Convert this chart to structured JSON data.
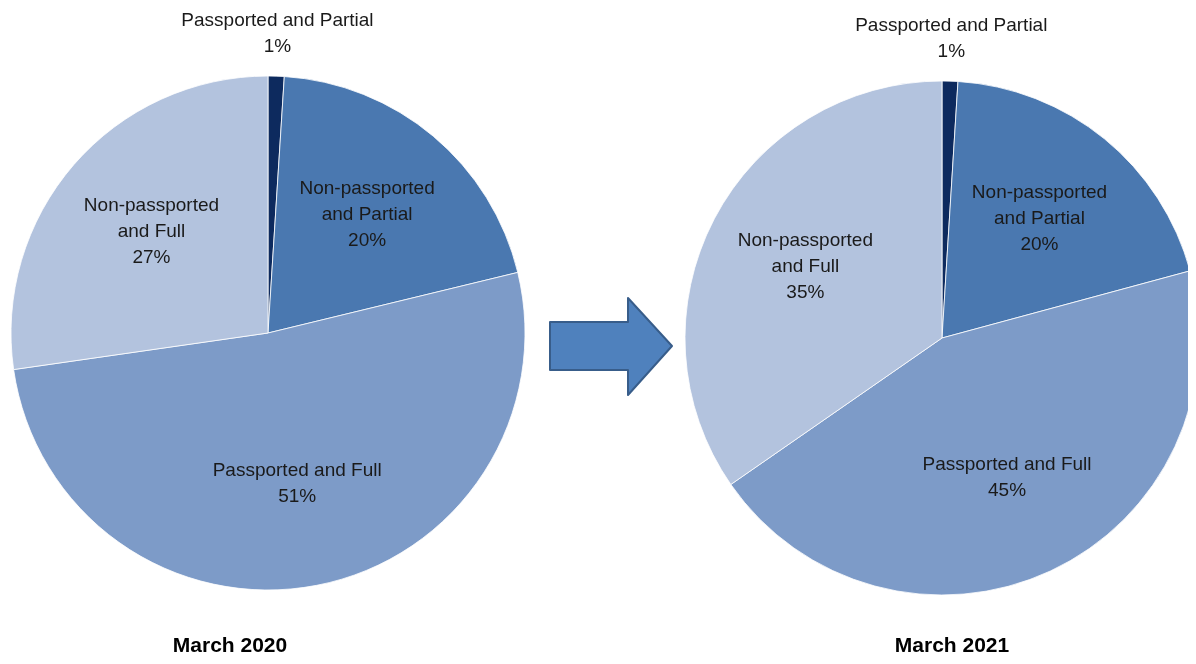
{
  "chart_data": [
    {
      "type": "pie",
      "title": "March 2020",
      "categories": [
        "Passported and Partial",
        "Non-passported and Partial",
        "Passported and Full",
        "Non-passported and Full"
      ],
      "values": [
        1,
        20,
        51,
        27
      ],
      "value_labels": [
        "1%",
        "20%",
        "51%",
        "27%"
      ],
      "colors": [
        "#0d2a5e",
        "#4a78b0",
        "#7d9bc8",
        "#b3c3de"
      ]
    },
    {
      "type": "pie",
      "title": "March 2021",
      "categories": [
        "Passported and Partial",
        "Non-passported and Partial",
        "Passported and Full",
        "Non-passported and Full"
      ],
      "values": [
        1,
        20,
        45,
        35
      ],
      "value_labels": [
        "1%",
        "20%",
        "45%",
        "35%"
      ],
      "colors": [
        "#0d2a5e",
        "#4a78b0",
        "#7d9bc8",
        "#b3c3de"
      ]
    }
  ]
}
